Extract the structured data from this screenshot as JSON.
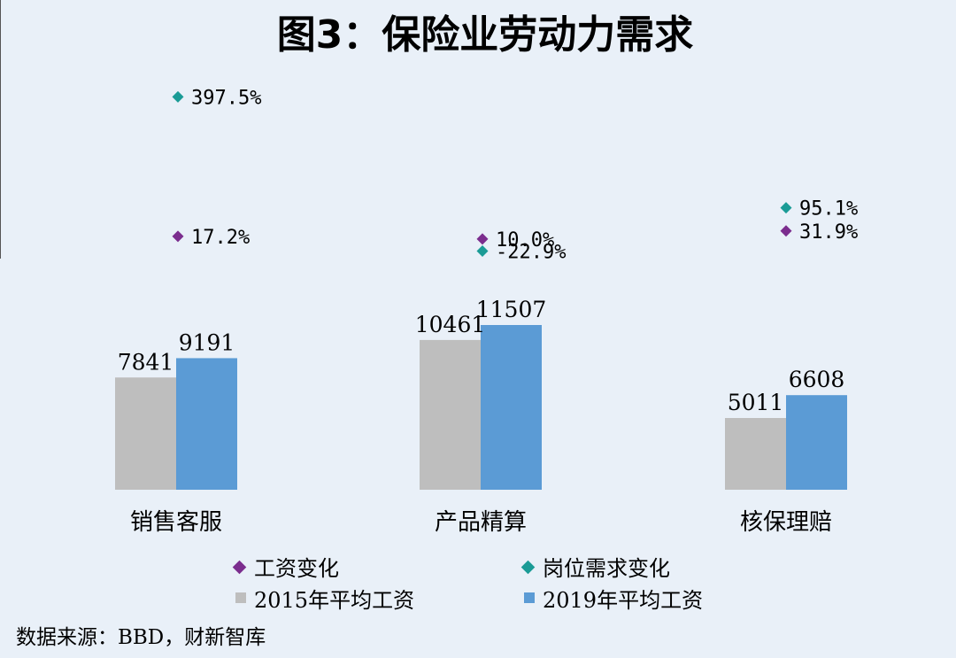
{
  "colors": {
    "background": "#e9f0f8",
    "bar_2015": "#bebebe",
    "bar_2019": "#5b9bd5",
    "marker_salary_change": "#7b2d8e",
    "marker_demand_change": "#1a9b96",
    "text": "#000000"
  },
  "chart_data": {
    "type": "bar",
    "title": "图3：保险业劳动力需求",
    "categories": [
      "销售客服",
      "产品精算",
      "核保理赔"
    ],
    "series": [
      {
        "name": "2015年平均工资",
        "values": [
          7841,
          10461,
          5011
        ]
      },
      {
        "name": "2019年平均工资",
        "values": [
          9191,
          11507,
          6608
        ]
      }
    ],
    "bar_value_labels": [
      [
        "7841",
        "10461",
        "5011"
      ],
      [
        "9191",
        "11507",
        "6608"
      ]
    ],
    "markers": [
      {
        "name": "工资变化",
        "shape": "diamond",
        "values": [
          17.2,
          10.0,
          31.9
        ],
        "labels": [
          "17.2%",
          "10.0%",
          "31.9%"
        ]
      },
      {
        "name": "岗位需求变化",
        "shape": "diamond",
        "values": [
          397.5,
          -22.9,
          95.1
        ],
        "labels": [
          "397.5%",
          "-22.9%",
          "95.1%"
        ]
      }
    ],
    "ylim": [
      0,
      25000
    ],
    "grid": false,
    "legend_position": "bottom",
    "source_note": "数据来源：BBD，财新智库"
  }
}
